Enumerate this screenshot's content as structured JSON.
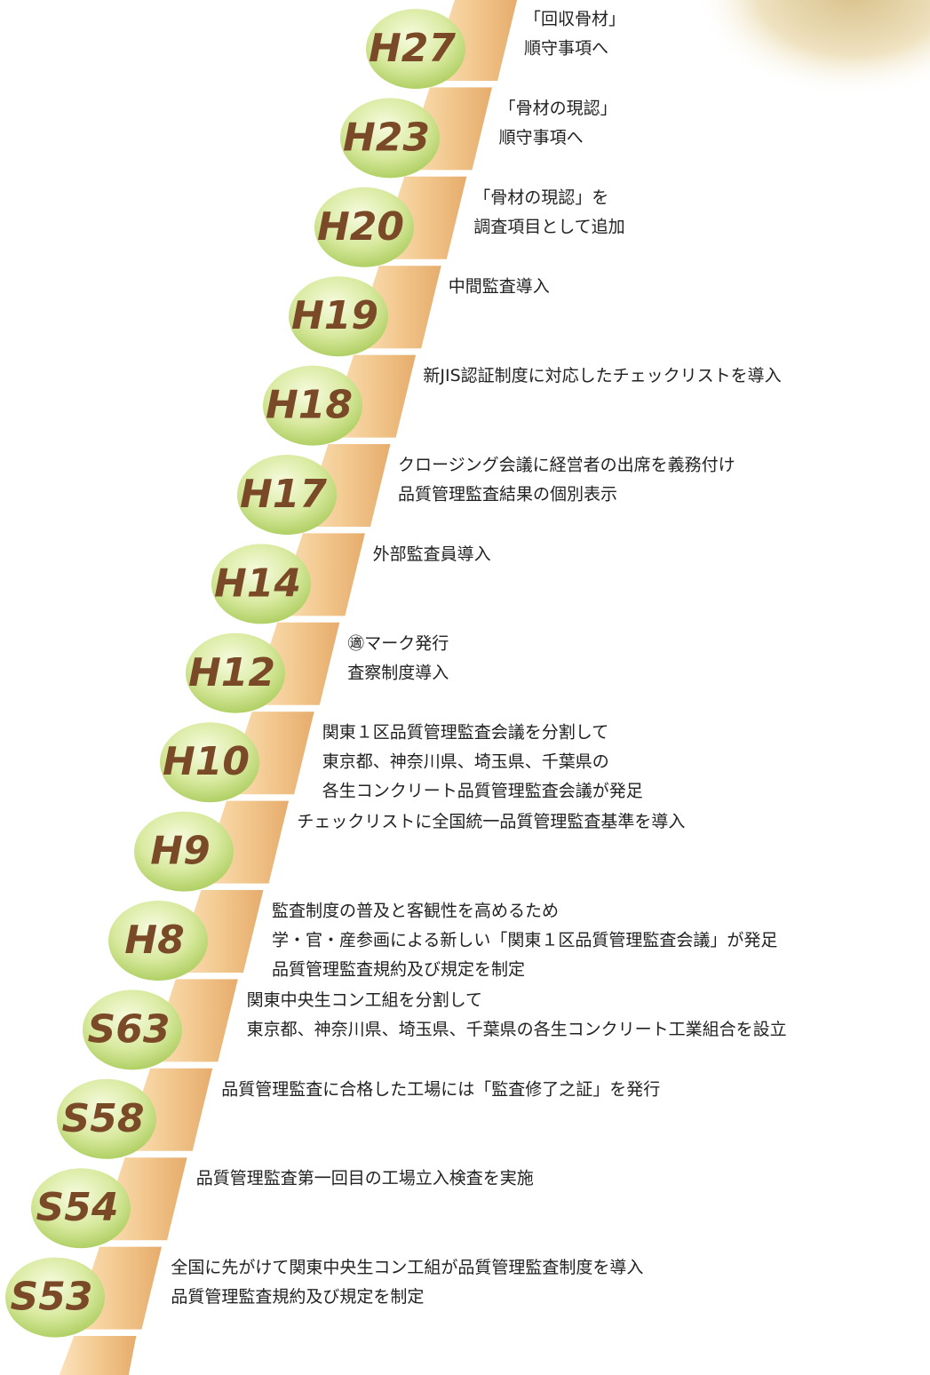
{
  "steps": [
    {
      "label": "H27",
      "lines": [
        "「回収骨材」",
        "順守事項へ"
      ]
    },
    {
      "label": "H23",
      "lines": [
        "「骨材の現認」",
        "順守事項へ"
      ]
    },
    {
      "label": "H20",
      "lines": [
        "「骨材の現認」を",
        "調査項目として追加"
      ]
    },
    {
      "label": "H19",
      "lines": [
        "中間監査導入"
      ]
    },
    {
      "label": "H18",
      "lines": [
        "新JIS認証制度に対応したチェックリストを導入"
      ]
    },
    {
      "label": "H17",
      "lines": [
        "クロージング会議に経営者の出席を義務付け",
        "品質管理監査結果の個別表示"
      ]
    },
    {
      "label": "H14",
      "lines": [
        "外部監査員導入"
      ]
    },
    {
      "label": "H12",
      "lines": [
        "㊜マーク発行",
        "査察制度導入"
      ]
    },
    {
      "label": "H10",
      "lines": [
        "関東１区品質管理監査会議を分割して",
        "東京都、神奈川県、埼玉県、千葉県の",
        "各生コンクリート品質管理監査会議が発足"
      ]
    },
    {
      "label": "H9",
      "lines": [
        "チェックリストに全国統一品質管理監査基準を導入"
      ]
    },
    {
      "label": "H8",
      "lines": [
        "監査制度の普及と客観性を高めるため",
        "学・官・産参画による新しい「関東１区品質管理監査会議」が発足",
        "品質管理監査規約及び規定を制定"
      ]
    },
    {
      "label": "S63",
      "lines": [
        "関東中央生コン工組を分割して",
        "東京都、神奈川県、埼玉県、千葉県の各生コンクリート工業組合を設立"
      ]
    },
    {
      "label": "S58",
      "lines": [
        "品質管理監査に合格した工場には「監査修了之証」を発行"
      ]
    },
    {
      "label": "S54",
      "lines": [
        "品質管理監査第一回目の工場立入検査を実施"
      ]
    },
    {
      "label": "S53",
      "lines": [
        "全国に先がけて関東中央生コン工組が品質管理監査制度を導入",
        "品質管理監査規約及び規定を制定"
      ]
    }
  ]
}
